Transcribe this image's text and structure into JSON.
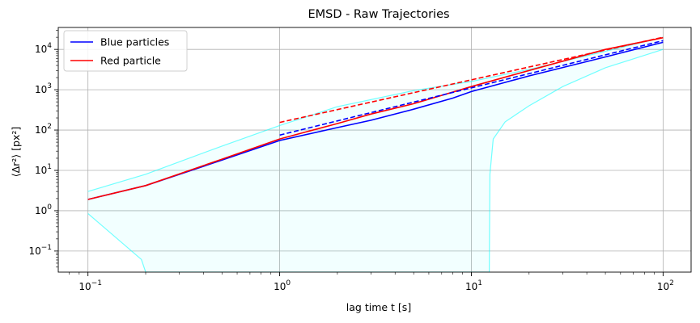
{
  "chart_data": {
    "type": "line",
    "title": "EMSD - Raw Trajectories",
    "xlabel": "lag time t [s]",
    "ylabel": "⟨Δr²⟩ [px²]",
    "xscale": "log",
    "yscale": "log",
    "xlim": [
      0.07,
      140
    ],
    "ylim": [
      0.03,
      35000
    ],
    "x_ticks": [
      {
        "value": 0.1,
        "base": "10",
        "exp": "−1"
      },
      {
        "value": 1,
        "base": "10",
        "exp": "0"
      },
      {
        "value": 10,
        "base": "10",
        "exp": "1"
      },
      {
        "value": 100,
        "base": "10",
        "exp": "2"
      }
    ],
    "y_ticks": [
      {
        "value": 0.1,
        "base": "10",
        "exp": "−1"
      },
      {
        "value": 1,
        "base": "10",
        "exp": "0"
      },
      {
        "value": 10,
        "base": "10",
        "exp": "1"
      },
      {
        "value": 100,
        "base": "10",
        "exp": "2"
      },
      {
        "value": 1000,
        "base": "10",
        "exp": "3"
      },
      {
        "value": 10000,
        "base": "10",
        "exp": "4"
      }
    ],
    "grid": true,
    "legend": "upper-left",
    "series": [
      {
        "name": "Blue particles",
        "color": "#0000ff",
        "style": "solid",
        "x": [
          0.1,
          0.2,
          0.5,
          1,
          2,
          3,
          5,
          8,
          10,
          20,
          50,
          100
        ],
        "y": [
          1.9,
          4.2,
          18,
          55,
          115,
          175,
          330,
          620,
          900,
          2200,
          6500,
          15000
        ]
      },
      {
        "name": "Red particle",
        "color": "#ff0000",
        "style": "solid",
        "x": [
          0.1,
          0.2,
          0.5,
          1,
          2,
          3,
          5,
          10,
          20,
          50,
          100
        ],
        "y": [
          1.9,
          4.2,
          19,
          60,
          145,
          250,
          450,
          1200,
          3000,
          10000,
          19500
        ]
      }
    ],
    "fit_lines": [
      {
        "color": "#0000ff",
        "style": "dashed",
        "x": [
          1,
          100
        ],
        "y": [
          75,
          16500
        ]
      },
      {
        "color": "#ff0000",
        "style": "dashed",
        "x": [
          1,
          100
        ],
        "y": [
          155,
          20000
        ]
      }
    ],
    "band": {
      "color": "#00ffff",
      "upper": {
        "x": [
          0.1,
          0.2,
          0.5,
          1,
          2,
          5,
          10,
          20,
          50,
          100
        ],
        "y": [
          3,
          8,
          40,
          130,
          380,
          950,
          1600,
          3200,
          9000,
          20000
        ]
      },
      "lower": {
        "x": [
          0.1,
          0.19,
          0.2,
          12.4,
          12.5,
          13,
          15,
          20,
          30,
          50,
          100
        ],
        "y": [
          0.85,
          0.062,
          0.03,
          0.03,
          8,
          60,
          160,
          400,
          1200,
          3500,
          10000
        ]
      }
    }
  }
}
